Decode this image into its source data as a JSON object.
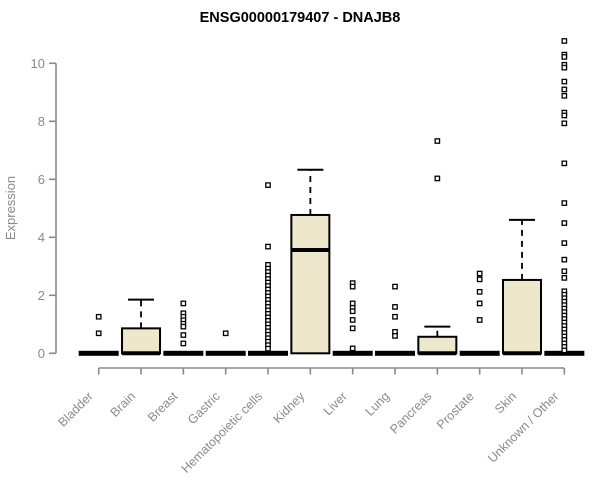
{
  "chart_data": {
    "type": "boxplot",
    "title": "ENSG00000179407 - DNAJB8",
    "ylabel": "Expression",
    "xlabel": "",
    "ylim": [
      0,
      10.8
    ],
    "yticks": [
      0,
      2,
      4,
      6,
      8,
      10
    ],
    "grid": false,
    "legend": "none",
    "outlier_marker": "open-square",
    "colors": {
      "box_fill": "#EDE7CC",
      "box_stroke": "#000000",
      "median": "#000000",
      "whisker": "#000000",
      "axis": "#8a8a8a",
      "tick_label": "#8a8a8a",
      "title": "#000000",
      "background": "#ffffff"
    },
    "categories": [
      "Bladder",
      "Brain",
      "Breast",
      "Gastric",
      "Hematopoietic cells",
      "Kidney",
      "Liver",
      "Lung",
      "Pancreas",
      "Prostate",
      "Skin",
      "Unknown / Other"
    ],
    "boxes": [
      {
        "category": "Bladder",
        "q1": 0,
        "median": 0,
        "q3": 0,
        "whisker_low": 0,
        "whisker_high": 0,
        "outliers": [
          1.26,
          0.69
        ]
      },
      {
        "category": "Brain",
        "q1": 0,
        "median": 0,
        "q3": 0.86,
        "whisker_low": 0,
        "whisker_high": 1.85,
        "outliers": []
      },
      {
        "category": "Breast",
        "q1": 0,
        "median": 0,
        "q3": 0,
        "whisker_low": 0,
        "whisker_high": 0,
        "outliers": [
          1.72,
          1.38,
          1.26,
          1.14,
          1.02,
          0.92,
          0.63,
          0.34
        ]
      },
      {
        "category": "Gastric",
        "q1": 0,
        "median": 0,
        "q3": 0,
        "whisker_low": 0,
        "whisker_high": 0,
        "outliers": [
          0.69
        ]
      },
      {
        "category": "Hematopoietic cells",
        "q1": 0,
        "median": 0,
        "q3": 0,
        "whisker_low": 0,
        "whisker_high": 0,
        "outliers": [
          5.8,
          3.68,
          3.05,
          2.92,
          2.8,
          2.68,
          2.56,
          2.44,
          2.32,
          2.2,
          2.08,
          1.96,
          1.84,
          1.72,
          1.6,
          1.48,
          1.36,
          1.24,
          1.12,
          1.0,
          0.88,
          0.76,
          0.64,
          0.52,
          0.4,
          0.28,
          0.16
        ]
      },
      {
        "category": "Kidney",
        "q1": 0,
        "median": 3.56,
        "q3": 4.77,
        "whisker_low": 0,
        "whisker_high": 6.33,
        "outliers": []
      },
      {
        "category": "Liver",
        "q1": 0,
        "median": 0,
        "q3": 0,
        "whisker_low": 0,
        "whisker_high": 0,
        "outliers": [
          2.42,
          2.3,
          1.72,
          1.57,
          1.45,
          1.15,
          0.86,
          0.17
        ]
      },
      {
        "category": "Lung",
        "q1": 0,
        "median": 0,
        "q3": 0,
        "whisker_low": 0,
        "whisker_high": 0,
        "outliers": [
          2.3,
          1.6,
          1.26,
          0.74,
          0.6
        ]
      },
      {
        "category": "Pancreas",
        "q1": 0,
        "median": 0,
        "q3": 0.57,
        "whisker_low": 0,
        "whisker_high": 0.92,
        "outliers": [
          7.32,
          6.03
        ]
      },
      {
        "category": "Prostate",
        "q1": 0,
        "median": 0,
        "q3": 0,
        "whisker_low": 0,
        "whisker_high": 0,
        "outliers": [
          2.75,
          2.55,
          2.12,
          1.72,
          1.15
        ]
      },
      {
        "category": "Skin",
        "q1": 0,
        "median": 0,
        "q3": 2.53,
        "whisker_low": 0,
        "whisker_high": 4.6,
        "outliers": []
      },
      {
        "category": "Unknown / Other",
        "q1": 0,
        "median": 0,
        "q3": 0,
        "whisker_low": 0,
        "whisker_high": 0,
        "outliers": [
          10.77,
          10.3,
          10.22,
          9.95,
          9.85,
          9.37,
          9.1,
          8.88,
          8.3,
          8.2,
          7.93,
          6.55,
          5.18,
          4.49,
          3.8,
          3.23,
          2.83,
          2.6,
          2.14,
          2.02,
          1.9,
          1.78,
          1.66,
          1.54,
          1.42,
          1.3,
          1.18,
          1.06,
          0.94,
          0.82,
          0.7,
          0.58,
          0.46,
          0.34,
          0.22,
          0.1
        ]
      }
    ]
  }
}
